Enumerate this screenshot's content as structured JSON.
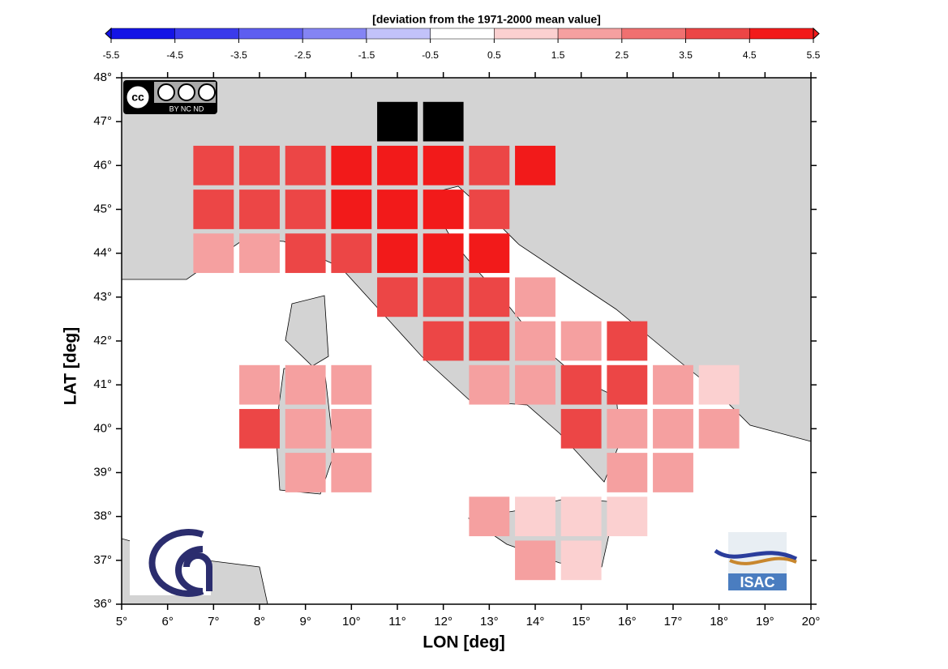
{
  "chart_data": {
    "type": "grid-map",
    "title": "[deviation from the 1971-2000 mean value]",
    "x_label": "LON [deg]",
    "y_label": "LAT [deg]",
    "xlim": [
      5,
      20
    ],
    "ylim": [
      36,
      48
    ],
    "xticks": [
      {
        "value": 5,
        "label": "5°"
      },
      {
        "value": 6,
        "label": "6°"
      },
      {
        "value": 7,
        "label": "7°"
      },
      {
        "value": 8,
        "label": "8°"
      },
      {
        "value": 9,
        "label": "9°"
      },
      {
        "value": 10,
        "label": "10°"
      },
      {
        "value": 11,
        "label": "11°"
      },
      {
        "value": 12,
        "label": "12°"
      },
      {
        "value": 13,
        "label": "13°"
      },
      {
        "value": 14,
        "label": "14°"
      },
      {
        "value": 15,
        "label": "15°"
      },
      {
        "value": 16,
        "label": "16°"
      },
      {
        "value": 17,
        "label": "17°"
      },
      {
        "value": 18,
        "label": "18°"
      },
      {
        "value": 19,
        "label": "19°"
      },
      {
        "value": 20,
        "label": "20°"
      }
    ],
    "yticks": [
      {
        "value": 36,
        "label": "36°"
      },
      {
        "value": 37,
        "label": "37°"
      },
      {
        "value": 38,
        "label": "38°"
      },
      {
        "value": 39,
        "label": "39°"
      },
      {
        "value": 40,
        "label": "40°"
      },
      {
        "value": 41,
        "label": "41°"
      },
      {
        "value": 42,
        "label": "42°"
      },
      {
        "value": 43,
        "label": "43°"
      },
      {
        "value": 44,
        "label": "44°"
      },
      {
        "value": 45,
        "label": "45°"
      },
      {
        "value": 46,
        "label": "46°"
      },
      {
        "value": 47,
        "label": "47°"
      },
      {
        "value": 48,
        "label": "48°"
      }
    ],
    "colorbar_ticks": [
      -5.5,
      -4.5,
      -3.5,
      -2.5,
      -1.5,
      -0.5,
      0.5,
      1.5,
      2.5,
      3.5,
      4.5,
      5.5
    ],
    "colorbar_colors": [
      "#1414e6",
      "#3a3aeb",
      "#5e5ef0",
      "#8484f4",
      "#c2c2f9",
      "#ffffff",
      "#fbd0d0",
      "#f5a0a0",
      "#f07070",
      "#ec4646",
      "#f21a1a"
    ],
    "missing_color": "#000000",
    "x": [
      11,
      12,
      7,
      8,
      9,
      10,
      11,
      12,
      13,
      14,
      7,
      8,
      9,
      10,
      11,
      12,
      13,
      7,
      8,
      9,
      10,
      11,
      12,
      13,
      11,
      12,
      13,
      14,
      12,
      13,
      14,
      15,
      16,
      8,
      9,
      10,
      13,
      14,
      15,
      16,
      17,
      18,
      8,
      9,
      10,
      15,
      16,
      17,
      18,
      9,
      10,
      16,
      17,
      13,
      14,
      15,
      16,
      14,
      15
    ],
    "y": [
      47,
      47,
      46,
      46,
      46,
      46,
      46,
      46,
      46,
      46,
      45,
      45,
      45,
      45,
      45,
      45,
      45,
      44,
      44,
      44,
      44,
      44,
      44,
      44,
      43,
      43,
      43,
      43,
      42,
      42,
      42,
      42,
      42,
      41,
      41,
      41,
      41,
      41,
      41,
      41,
      41,
      41,
      40,
      40,
      40,
      40,
      40,
      40,
      40,
      39,
      39,
      39,
      39,
      38,
      38,
      38,
      38,
      37,
      37
    ],
    "values": [
      null,
      null,
      4,
      4,
      4,
      5,
      5,
      5,
      4,
      5,
      4,
      4,
      4,
      5,
      5,
      5,
      4,
      2,
      2,
      4,
      4,
      5,
      5,
      5,
      4,
      4,
      4,
      2,
      4,
      4,
      2,
      2,
      4,
      2,
      2,
      2,
      2,
      2,
      4,
      4,
      2,
      1,
      4,
      2,
      2,
      4,
      2,
      2,
      2,
      2,
      2,
      2,
      2,
      2,
      1,
      1,
      1,
      2,
      1
    ],
    "logos": {
      "cc": "cc",
      "cc_terms": "BY  NC  ND",
      "isac": "ISAC"
    }
  }
}
